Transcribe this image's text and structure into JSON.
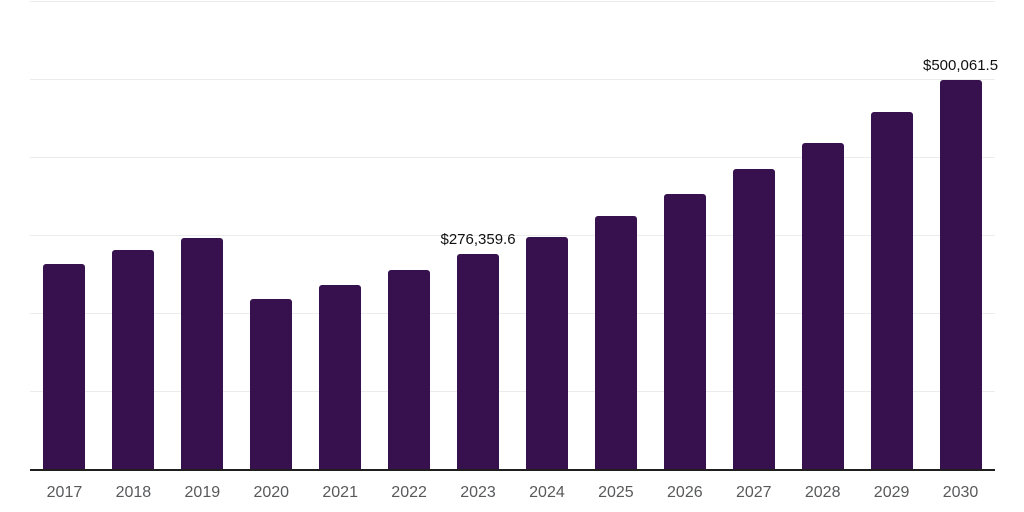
{
  "chart": {
    "background_color": "#ffffff",
    "bar_color": "#36114E",
    "axis_line_color": "#1f1f1f",
    "gridline_color": "#ececec",
    "tick_label_color": "#58595b",
    "data_label_color": "#111111"
  },
  "chart_data": {
    "type": "bar",
    "title": "",
    "xlabel": "",
    "ylabel": "",
    "categories": [
      "2017",
      "2018",
      "2019",
      "2020",
      "2021",
      "2022",
      "2023",
      "2024",
      "2025",
      "2026",
      "2027",
      "2028",
      "2029",
      "2030"
    ],
    "values": [
      264000,
      282000,
      297500,
      219000,
      237100,
      256400,
      276359.6,
      298700,
      325600,
      353800,
      385900,
      419200,
      459000,
      500061.5
    ],
    "labeled_points": [
      {
        "category": "2023",
        "label": "$276,359.6"
      },
      {
        "category": "2030",
        "label": "$500,061.5"
      }
    ],
    "ylim": [
      0,
      600000
    ],
    "gridline_step": 100000,
    "grid": "horizontal",
    "y_tick_labels": "none",
    "legend": "none"
  }
}
